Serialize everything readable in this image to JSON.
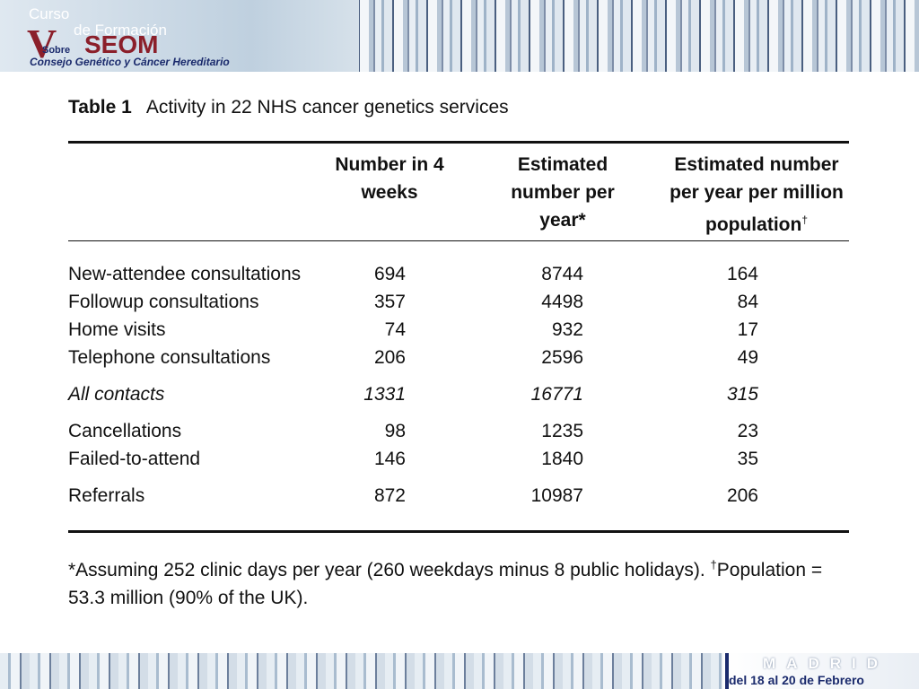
{
  "header": {
    "logo": "V",
    "course": "Curso",
    "de": "de Formación",
    "org": "SEOM",
    "sobre": "Sobre",
    "subject": "Consejo Genético y Cáncer Hereditario"
  },
  "table": {
    "label": "Table 1",
    "caption": "Activity in 22 NHS cancer genetics services",
    "columns": [
      "Number in 4 weeks",
      "Estimated number per year*",
      "Estimated number per year per million population"
    ],
    "last_column_mark": "†",
    "groups": [
      [
        [
          "New-attendee consultations",
          694,
          8744,
          164
        ],
        [
          "Followup consultations",
          357,
          4498,
          84
        ],
        [
          "Home visits",
          74,
          932,
          17
        ],
        [
          "Telephone consultations",
          206,
          2596,
          49
        ]
      ],
      [
        [
          "All contacts",
          1331,
          16771,
          315
        ]
      ],
      [
        [
          "Cancellations",
          98,
          1235,
          23
        ],
        [
          "Failed-to-attend",
          146,
          1840,
          35
        ]
      ],
      [
        [
          "Referrals",
          872,
          10987,
          206
        ]
      ]
    ],
    "italic_group": 1,
    "footnote": {
      "part1": "*Assuming 252 clinic days per year (260 weekdays minus 8 public holidays). ",
      "dagger": "†",
      "part2": "Population = 53.3 million (90% of the UK)."
    }
  },
  "footer": {
    "city": "MADRID",
    "dates": "del 18 al 20 de Febrero"
  }
}
